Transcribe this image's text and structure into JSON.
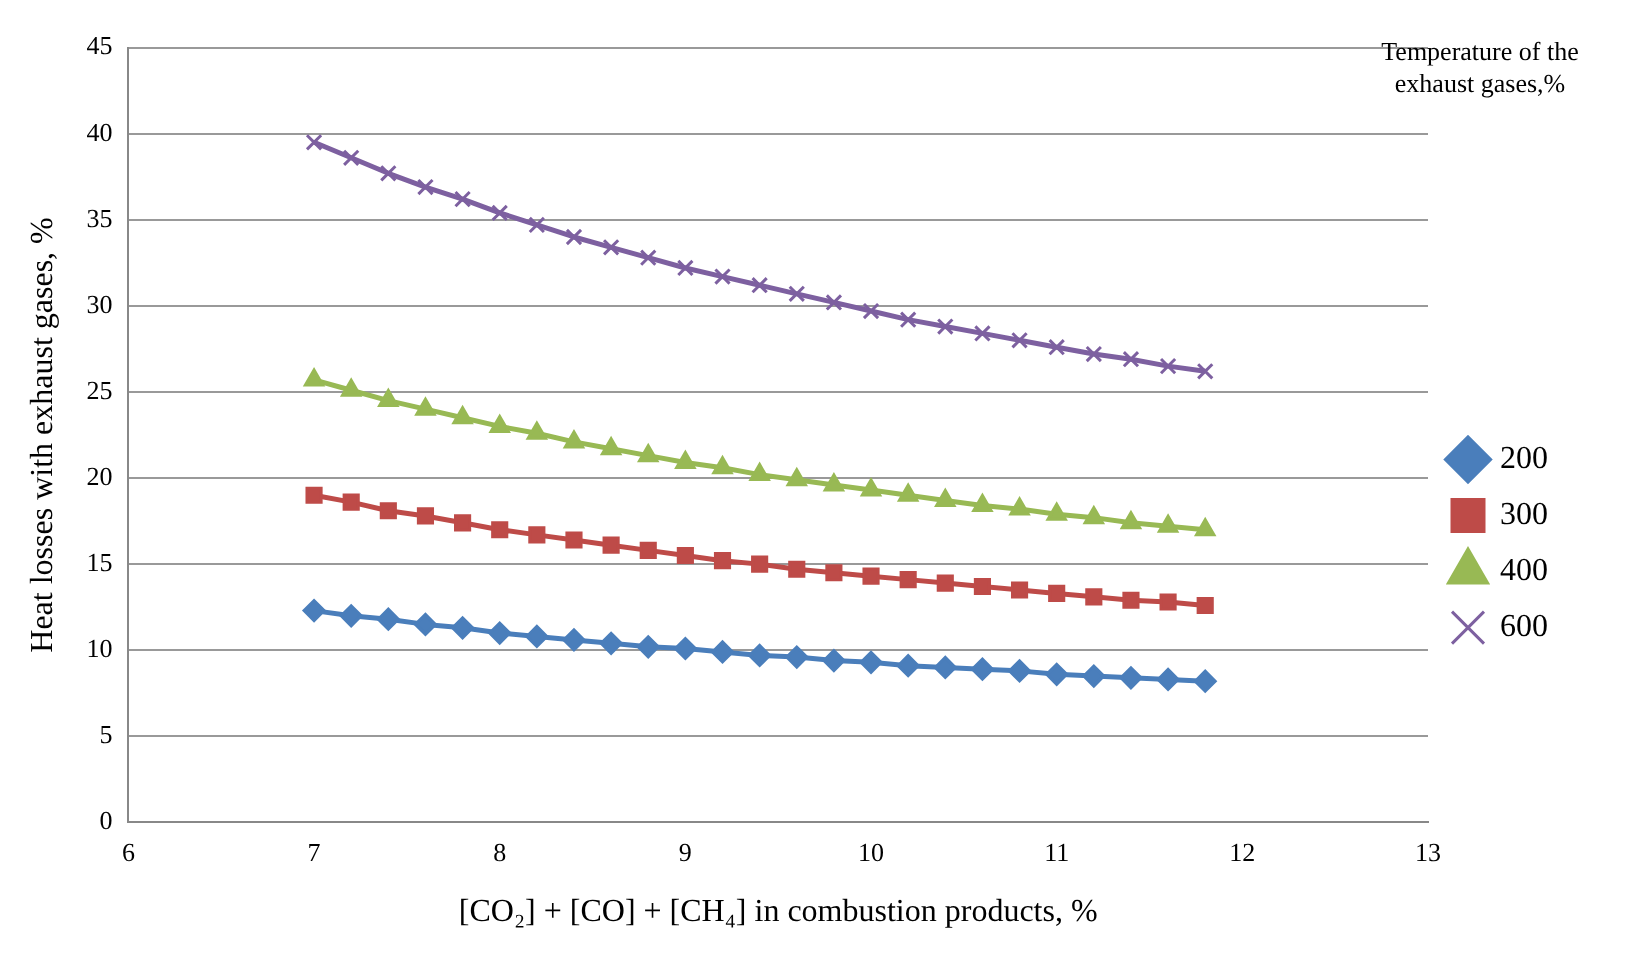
{
  "chart_data": {
    "type": "line",
    "xlabel": "[CO₂] + [CO] + [CH₄] in combustion products, %",
    "ylabel": "Heat losses with exhaust gases, %",
    "legend_title": "Temperature of the exhaust gases,%",
    "x": [
      7,
      7.2,
      7.4,
      7.6,
      7.8,
      8,
      8.2,
      8.4,
      8.6,
      8.8,
      9,
      9.2,
      9.4,
      9.6,
      9.8,
      10,
      10.2,
      10.4,
      10.6,
      10.8,
      11,
      11.2,
      11.4,
      11.6,
      11.8
    ],
    "series": [
      {
        "name": "200",
        "color": "#4a7ebb",
        "marker": "diamond",
        "values": [
          12.3,
          12.0,
          11.8,
          11.5,
          11.3,
          11.0,
          10.8,
          10.6,
          10.4,
          10.2,
          10.1,
          9.9,
          9.7,
          9.6,
          9.4,
          9.3,
          9.1,
          9.0,
          8.9,
          8.8,
          8.6,
          8.5,
          8.4,
          8.3,
          8.2
        ]
      },
      {
        "name": "300",
        "color": "#be4b48",
        "marker": "square",
        "values": [
          19.0,
          18.6,
          18.1,
          17.8,
          17.4,
          17.0,
          16.7,
          16.4,
          16.1,
          15.8,
          15.5,
          15.2,
          15.0,
          14.7,
          14.5,
          14.3,
          14.1,
          13.9,
          13.7,
          13.5,
          13.3,
          13.1,
          12.9,
          12.8,
          12.6
        ]
      },
      {
        "name": "400",
        "color": "#98b954",
        "marker": "triangle",
        "values": [
          25.7,
          25.1,
          24.5,
          24.0,
          23.5,
          23.0,
          22.6,
          22.1,
          21.7,
          21.3,
          20.9,
          20.6,
          20.2,
          19.9,
          19.6,
          19.3,
          19.0,
          18.7,
          18.4,
          18.2,
          17.9,
          17.7,
          17.4,
          17.2,
          17.0
        ]
      },
      {
        "name": "600",
        "color": "#7d60a0",
        "marker": "cross",
        "values": [
          39.5,
          38.6,
          37.7,
          36.9,
          36.2,
          35.4,
          34.7,
          34.0,
          33.4,
          32.8,
          32.2,
          31.7,
          31.2,
          30.7,
          30.2,
          29.7,
          29.2,
          28.8,
          28.4,
          28.0,
          27.6,
          27.2,
          26.9,
          26.5,
          26.2
        ]
      }
    ],
    "xlim": [
      6,
      13
    ],
    "xticks": [
      6,
      7,
      8,
      9,
      10,
      11,
      12,
      13
    ],
    "ylim": [
      0,
      45
    ],
    "yticks": [
      0,
      5,
      10,
      15,
      20,
      25,
      30,
      35,
      40,
      45
    ],
    "grid": "y",
    "legend": "right"
  }
}
